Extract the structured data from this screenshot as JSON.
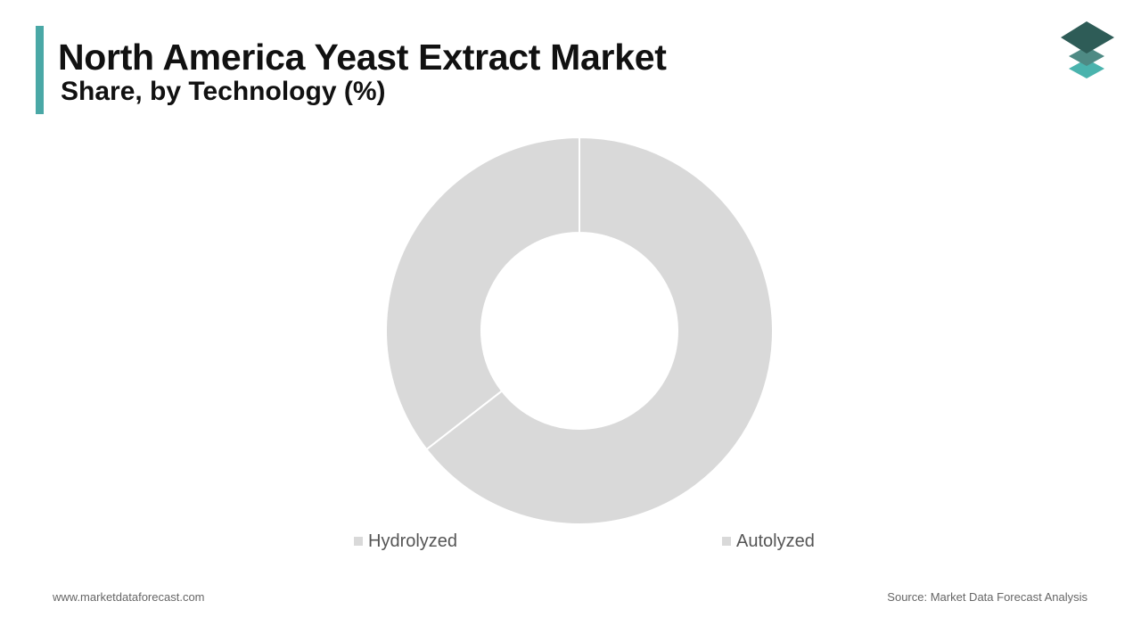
{
  "header": {
    "title": "North America Yeast Extract Market",
    "subtitle": "Share, by Technology (%)"
  },
  "colors": {
    "accent": "#4aa8a6",
    "slice": "#d9d9d9",
    "logo_top": "#2e5c57",
    "logo_mid": "#4e8a84",
    "logo_bottom": "#4ab3ad"
  },
  "icons": {
    "logo": "stacked-layers-logo-icon"
  },
  "chart_data": {
    "type": "pie",
    "style": "donut",
    "categories": [
      "Hydrolyzed",
      "Autolyzed"
    ],
    "values": [
      35.5,
      64.5
    ],
    "start_angle_deg": 0,
    "direction": "counterclockwise-from-top for first slice",
    "legend": {
      "placement": "bottom",
      "entries": [
        "Hydrolyzed",
        "Autolyzed"
      ]
    }
  },
  "footer": {
    "website": "www.marketdataforecast.com",
    "source": "Source: Market Data Forecast Analysis"
  }
}
